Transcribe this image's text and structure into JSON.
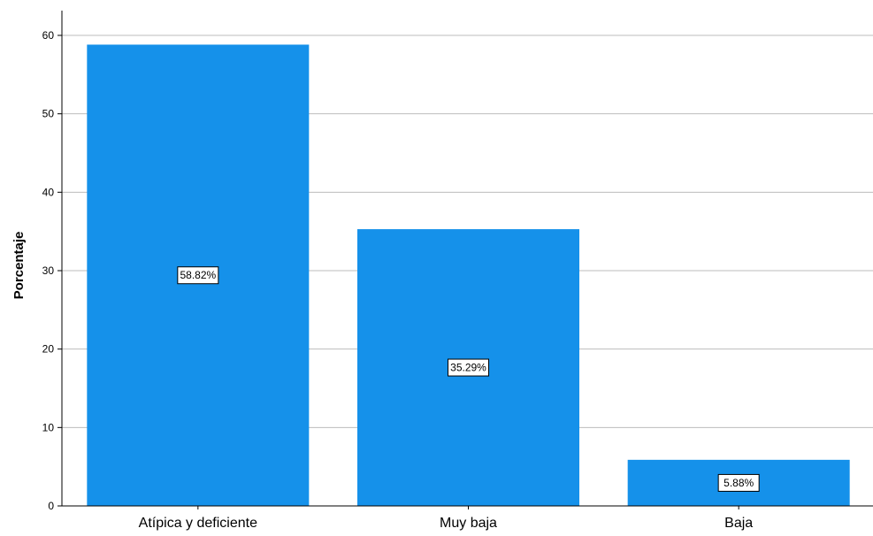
{
  "chart_data": {
    "type": "bar",
    "categories": [
      "Atípica y deficiente",
      "Muy baja",
      "Baja"
    ],
    "values": [
      58.82,
      35.29,
      5.88
    ],
    "data_labels": [
      "58.82%",
      "35.29%",
      "5.88%"
    ],
    "title": "",
    "xlabel": "",
    "ylabel": "Porcentaje",
    "ylim": [
      0,
      60
    ],
    "yticks": [
      "0",
      "10",
      "20",
      "30",
      "40",
      "50",
      "60"
    ],
    "grid": true,
    "colors": {
      "bar": "#1591EA",
      "grid": "#BDBDBD",
      "axis": "#000000"
    }
  }
}
